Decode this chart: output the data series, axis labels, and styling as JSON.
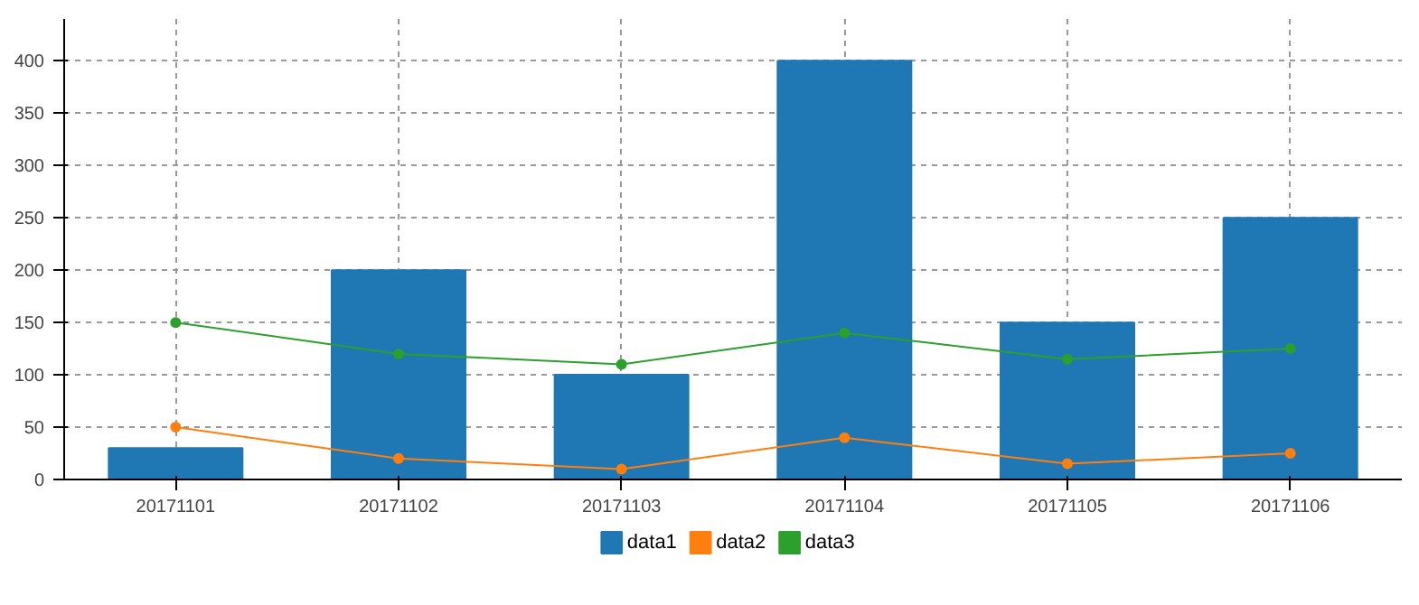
{
  "chart_data": {
    "type": "bar",
    "categories": [
      "20171101",
      "20171102",
      "20171103",
      "20171104",
      "20171105",
      "20171106"
    ],
    "series": [
      {
        "name": "data1",
        "color": "#1f77b4",
        "values": [
          30,
          200,
          100,
          400,
          150,
          250
        ]
      },
      {
        "name": "data2",
        "type": "line",
        "color": "#ff7f0e",
        "values": [
          50,
          20,
          10,
          40,
          15,
          25
        ]
      },
      {
        "name": "data3",
        "type": "line",
        "color": "#2ca02c",
        "values": [
          150,
          120,
          110,
          140,
          115,
          125
        ]
      }
    ],
    "ylim": [
      0,
      440
    ],
    "yticks": [
      0,
      50,
      100,
      150,
      200,
      250,
      300,
      350,
      400
    ],
    "grid": true,
    "legend": "bottom",
    "marker": "circle",
    "line_style": "solid"
  }
}
